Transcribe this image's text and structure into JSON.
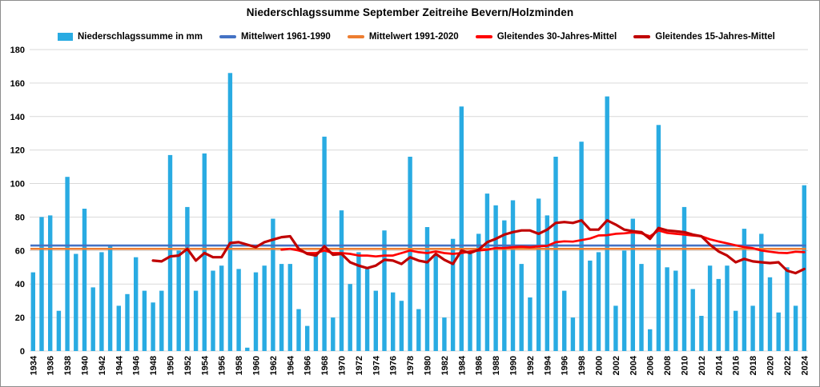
{
  "title": "Niederschlagssumme September Zeitreihe Bevern/Holzminden",
  "legend": [
    {
      "label": "Niederschlagssumme in mm",
      "color": "#29ABE2",
      "swatch": "bar"
    },
    {
      "label": "Mittelwert 1961-1990",
      "color": "#4472C4",
      "swatch": "line"
    },
    {
      "label": "Mittelwert 1991-2020",
      "color": "#ED7D31",
      "swatch": "line"
    },
    {
      "label": "Gleitendes 30-Jahres-Mittel",
      "color": "#FF0000",
      "swatch": "line"
    },
    {
      "label": "Gleitendes 15-Jahres-Mittel",
      "color": "#C00000",
      "swatch": "line"
    }
  ],
  "chart_data": {
    "type": "bar",
    "title": "Niederschlagssumme September Zeitreihe Bevern/Holzminden",
    "x_start": 1934,
    "x_end": 2024,
    "xlabel": "",
    "ylabel": "",
    "ylim": [
      0,
      180
    ],
    "ytick_step": 20,
    "ytick_labels": [
      "0",
      "20",
      "40",
      "60",
      "80",
      "100",
      "120",
      "140",
      "160",
      "180"
    ],
    "xtick_labels": [
      "1934",
      "1936",
      "1938",
      "1940",
      "1942",
      "1944",
      "1946",
      "1948",
      "1950",
      "1952",
      "1954",
      "1956",
      "1958",
      "1960",
      "1962",
      "1964",
      "1966",
      "1968",
      "1970",
      "1972",
      "1974",
      "1976",
      "1978",
      "1980",
      "1982",
      "1984",
      "1986",
      "1988",
      "1990",
      "1992",
      "1994",
      "1996",
      "1998",
      "2000",
      "2002",
      "2004",
      "2006",
      "2008",
      "2010",
      "2012",
      "2014",
      "2016",
      "2018",
      "2020",
      "2022",
      "2024"
    ],
    "grid": true,
    "legend_position": "top",
    "series": [
      {
        "name": "Niederschlagssumme in mm",
        "type": "bar",
        "color": "#29ABE2",
        "start_year": 1934,
        "values": [
          47,
          80,
          81,
          24,
          104,
          58,
          85,
          38,
          59,
          63,
          27,
          34,
          56,
          36,
          29,
          36,
          117,
          60,
          86,
          36,
          118,
          48,
          51,
          166,
          49,
          2,
          47,
          51,
          79,
          52,
          52,
          25,
          15,
          58,
          128,
          20,
          84,
          40,
          59,
          49,
          36,
          72,
          35,
          30,
          116,
          25,
          74,
          58,
          20,
          67,
          146,
          58,
          70,
          94,
          87,
          78,
          90,
          52,
          32,
          91,
          81,
          116,
          36,
          20,
          125,
          54,
          59,
          152,
          27,
          60,
          79,
          52,
          13,
          135,
          50,
          48,
          86,
          37,
          21,
          51,
          43,
          51,
          24,
          73,
          27,
          70,
          44,
          23,
          50,
          27,
          99
        ]
      },
      {
        "name": "Mittelwert 1961-1990",
        "type": "hline",
        "color": "#4472C4",
        "stroke_width": 2.6,
        "value": 63
      },
      {
        "name": "Mittelwert 1991-2020",
        "type": "hline",
        "color": "#ED7D31",
        "stroke_width": 2.6,
        "value": 61
      },
      {
        "name": "Gleitendes 30-Jahres-Mittel",
        "type": "line",
        "color": "#FF0000",
        "stroke_width": 2.7,
        "start_year": 1963,
        "values": [
          60.5,
          61,
          60,
          58.5,
          58.5,
          60,
          58.5,
          58.5,
          58,
          57,
          57,
          56.5,
          57,
          57,
          58.5,
          60,
          59,
          58.5,
          59.5,
          58.5,
          58,
          58.5,
          59.5,
          60,
          60.5,
          61.5,
          61.5,
          62,
          62.3,
          62,
          62.5,
          62.8,
          65,
          65.5,
          65.3,
          66.2,
          67.2,
          69,
          69.2,
          70,
          70.3,
          70.8,
          70.3,
          68.5,
          72,
          70.5,
          70,
          69.5,
          69,
          68.5,
          66.7,
          65.4,
          64.3,
          63.1,
          62,
          61.4,
          60,
          59.3,
          58.7,
          58.5,
          59.3,
          59
        ]
      },
      {
        "name": "Gleitendes 15-Jahres-Mittel",
        "type": "line",
        "color": "#C00000",
        "stroke_width": 3.2,
        "start_year": 1948,
        "values": [
          54,
          53.5,
          56.5,
          57,
          61,
          54,
          58.5,
          56,
          56,
          64.5,
          65,
          63.5,
          62,
          65,
          66.5,
          68,
          68.5,
          61,
          58,
          57,
          62.5,
          57.5,
          58,
          53,
          51,
          49.5,
          51,
          54.5,
          54,
          52,
          56,
          54,
          53,
          58,
          54.5,
          52,
          60,
          58.5,
          60.5,
          65,
          67,
          69.5,
          71,
          72,
          72,
          70,
          72.5,
          76.5,
          77,
          76.5,
          78,
          72.5,
          72.5,
          78,
          75.5,
          72.5,
          71.5,
          71,
          67,
          73.5,
          72,
          71.5,
          71,
          69.5,
          68.5,
          63.5,
          59.5,
          57,
          53,
          55,
          53.5,
          53,
          52.5,
          53,
          48,
          46.5,
          49
        ]
      }
    ]
  }
}
